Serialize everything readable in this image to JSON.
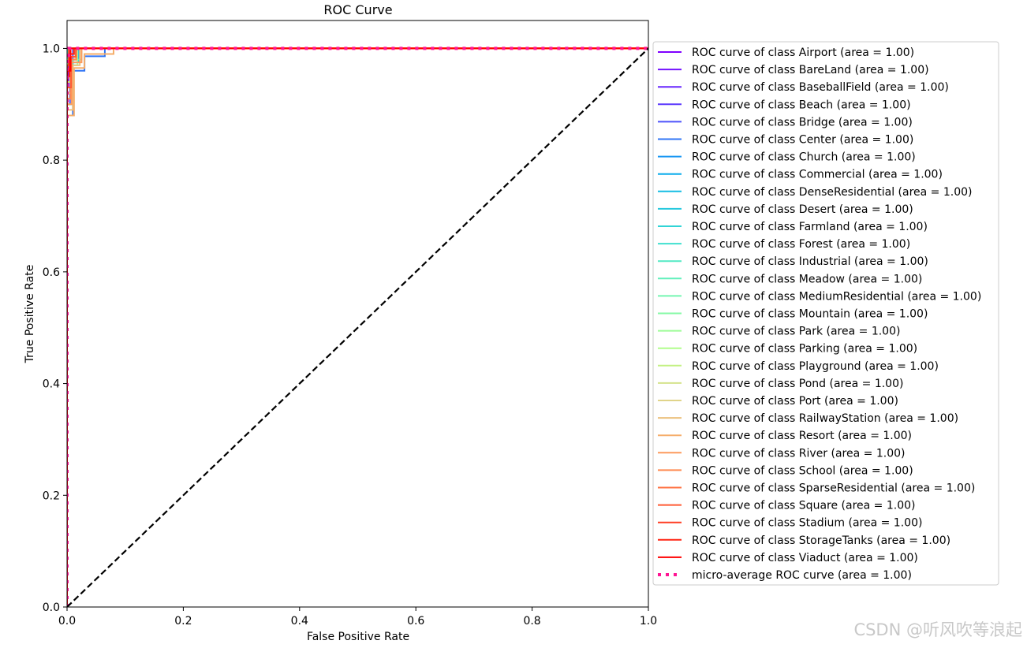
{
  "chart_data": {
    "type": "line",
    "title": "ROC Curve",
    "xlabel": "False Positive Rate",
    "ylabel": "True Positive Rate",
    "xlim": [
      0.0,
      1.0
    ],
    "ylim": [
      0.0,
      1.05
    ],
    "xticks": [
      "0.0",
      "0.2",
      "0.4",
      "0.6",
      "0.8",
      "1.0"
    ],
    "yticks": [
      "0.0",
      "0.2",
      "0.4",
      "0.6",
      "0.8",
      "1.0"
    ],
    "legend_position": "right, outside plot",
    "grid": false,
    "series": [
      {
        "name": "ROC curve of class Airport (area = 1.00)",
        "color": "#8000ff",
        "x": [
          0,
          0,
          0.002,
          0.002,
          1
        ],
        "y": [
          0,
          0.93,
          0.93,
          1.0,
          1.0
        ]
      },
      {
        "name": "ROC curve of class BareLand (area = 1.00)",
        "color": "#7413ff",
        "x": [
          0,
          0,
          0.003,
          0.003,
          1
        ],
        "y": [
          0,
          0.95,
          0.95,
          1.0,
          1.0
        ]
      },
      {
        "name": "ROC curve of class BaseballField (area = 1.00)",
        "color": "#6826fe",
        "x": [
          0,
          0,
          0.004,
          0.004,
          1
        ],
        "y": [
          0,
          0.96,
          0.96,
          1.0,
          1.0
        ]
      },
      {
        "name": "ROC curve of class Beach (area = 1.00)",
        "color": "#5c39fd",
        "x": [
          0,
          0,
          0.002,
          0.002,
          1
        ],
        "y": [
          0,
          0.97,
          0.97,
          1.0,
          1.0
        ]
      },
      {
        "name": "ROC curve of class Bridge (area = 1.00)",
        "color": "#4e53fb",
        "x": [
          0,
          0,
          0.005,
          0.005,
          0.01,
          0.01,
          1
        ],
        "y": [
          0,
          0.9,
          0.9,
          0.97,
          0.97,
          1.0,
          1.0
        ]
      },
      {
        "name": "ROC curve of class Center (area = 1.00)",
        "color": "#3075f6",
        "x": [
          0,
          0,
          0.01,
          0.01,
          0.03,
          0.03,
          0.065,
          0.065,
          1
        ],
        "y": [
          0,
          0.88,
          0.88,
          0.96,
          0.96,
          0.986,
          0.986,
          1.0,
          1.0
        ]
      },
      {
        "name": "ROC curve of class Church (area = 1.00)",
        "color": "#1996f3",
        "x": [
          0,
          0,
          0.006,
          0.006,
          0.015,
          0.015,
          1
        ],
        "y": [
          0,
          0.92,
          0.92,
          0.98,
          0.98,
          1.0,
          1.0
        ]
      },
      {
        "name": "ROC curve of class Commercial (area = 1.00)",
        "color": "#0bacec",
        "x": [
          0,
          0,
          0.008,
          0.008,
          0.02,
          0.02,
          1
        ],
        "y": [
          0,
          0.9,
          0.9,
          0.975,
          0.975,
          1.0,
          1.0
        ]
      },
      {
        "name": "ROC curve of class DenseResidential (area = 1.00)",
        "color": "#16bde4",
        "x": [
          0,
          0,
          0.005,
          0.005,
          0.012,
          0.012,
          1
        ],
        "y": [
          0,
          0.94,
          0.94,
          0.99,
          0.99,
          1.0,
          1.0
        ]
      },
      {
        "name": "ROC curve of class Desert (area = 1.00)",
        "color": "#25c8de",
        "x": [
          0,
          0,
          0.003,
          0.003,
          1
        ],
        "y": [
          0,
          0.98,
          0.98,
          1.0,
          1.0
        ]
      },
      {
        "name": "ROC curve of class Farmland (area = 1.00)",
        "color": "#31d4d6",
        "x": [
          0,
          0,
          0.004,
          0.004,
          1
        ],
        "y": [
          0,
          0.97,
          0.97,
          1.0,
          1.0
        ]
      },
      {
        "name": "ROC curve of class Forest (area = 1.00)",
        "color": "#40e0cf",
        "x": [
          0,
          0,
          0.002,
          0.002,
          1
        ],
        "y": [
          0,
          0.99,
          0.99,
          1.0,
          1.0
        ]
      },
      {
        "name": "ROC curve of class Industrial (area = 1.00)",
        "color": "#52e9c4",
        "x": [
          0,
          0,
          0.01,
          0.01,
          0.025,
          0.025,
          1
        ],
        "y": [
          0,
          0.9,
          0.9,
          0.98,
          0.98,
          1.0,
          1.0
        ]
      },
      {
        "name": "ROC curve of class Meadow (area = 1.00)",
        "color": "#62f0bb",
        "x": [
          0,
          0,
          0.003,
          0.003,
          1
        ],
        "y": [
          0,
          0.97,
          0.97,
          1.0,
          1.0
        ]
      },
      {
        "name": "ROC curve of class MediumResidential (area = 1.00)",
        "color": "#74f5b0",
        "x": [
          0,
          0,
          0.006,
          0.006,
          0.015,
          0.015,
          1
        ],
        "y": [
          0,
          0.93,
          0.93,
          0.985,
          0.985,
          1.0,
          1.0
        ]
      },
      {
        "name": "ROC curve of class Mountain (area = 1.00)",
        "color": "#86faa6",
        "x": [
          0,
          0,
          0.004,
          0.004,
          1
        ],
        "y": [
          0,
          0.96,
          0.96,
          1.0,
          1.0
        ]
      },
      {
        "name": "ROC curve of class Park (area = 1.00)",
        "color": "#9dfc98",
        "x": [
          0,
          0,
          0.008,
          0.008,
          0.018,
          0.018,
          1
        ],
        "y": [
          0,
          0.91,
          0.91,
          0.97,
          0.97,
          1.0,
          1.0
        ]
      },
      {
        "name": "ROC curve of class Parking (area = 1.00)",
        "color": "#b0fe8c",
        "x": [
          0,
          0,
          0.003,
          0.003,
          1
        ],
        "y": [
          0,
          0.98,
          0.98,
          1.0,
          1.0
        ]
      },
      {
        "name": "ROC curve of class Playground (area = 1.00)",
        "color": "#c3f083",
        "x": [
          0,
          0,
          0.005,
          0.005,
          0.012,
          0.012,
          1
        ],
        "y": [
          0,
          0.94,
          0.94,
          0.99,
          0.99,
          1.0,
          1.0
        ]
      },
      {
        "name": "ROC curve of class Pond (area = 1.00)",
        "color": "#d4e38b",
        "x": [
          0,
          0,
          0.004,
          0.004,
          1
        ],
        "y": [
          0,
          0.96,
          0.96,
          1.0,
          1.0
        ]
      },
      {
        "name": "ROC curve of class Port (area = 1.00)",
        "color": "#e0d48a",
        "x": [
          0,
          0,
          0.006,
          0.006,
          0.014,
          0.014,
          1
        ],
        "y": [
          0,
          0.92,
          0.92,
          0.98,
          0.98,
          1.0,
          1.0
        ]
      },
      {
        "name": "ROC curve of class RailwayStation (area = 1.00)",
        "color": "#ebc07d",
        "x": [
          0,
          0,
          0.01,
          0.01,
          0.022,
          0.022,
          1
        ],
        "y": [
          0,
          0.89,
          0.89,
          0.97,
          0.97,
          1.0,
          1.0
        ]
      },
      {
        "name": "ROC curve of class Resort (area = 1.00)",
        "color": "#f5ad6a",
        "x": [
          0,
          0,
          0.012,
          0.012,
          0.03,
          0.03,
          0.08,
          0.08,
          1
        ],
        "y": [
          0,
          0.88,
          0.88,
          0.965,
          0.965,
          0.99,
          0.99,
          1.0,
          1.0
        ]
      },
      {
        "name": "ROC curve of class River (area = 1.00)",
        "color": "#fd9b5d",
        "x": [
          0,
          0,
          0.008,
          0.008,
          0.025,
          0.025,
          1
        ],
        "y": [
          0,
          0.9,
          0.9,
          0.975,
          0.975,
          1.0,
          1.0
        ]
      },
      {
        "name": "ROC curve of class School (area = 1.00)",
        "color": "#ff8a52",
        "x": [
          0,
          0,
          0.006,
          0.006,
          0.016,
          0.016,
          1
        ],
        "y": [
          0,
          0.91,
          0.91,
          0.98,
          0.98,
          1.0,
          1.0
        ]
      },
      {
        "name": "ROC curve of class SparseResidential (area = 1.00)",
        "color": "#ff7142",
        "x": [
          0,
          0,
          0.004,
          0.004,
          1
        ],
        "y": [
          0,
          0.96,
          0.96,
          1.0,
          1.0
        ]
      },
      {
        "name": "ROC curve of class Square (area = 1.00)",
        "color": "#ff5a33",
        "x": [
          0,
          0,
          0.007,
          0.007,
          0.015,
          0.015,
          1
        ],
        "y": [
          0,
          0.93,
          0.93,
          0.985,
          0.985,
          1.0,
          1.0
        ]
      },
      {
        "name": "ROC curve of class Stadium (area = 1.00)",
        "color": "#ff3e22",
        "x": [
          0,
          0,
          0.003,
          0.003,
          1
        ],
        "y": [
          0,
          0.97,
          0.97,
          1.0,
          1.0
        ]
      },
      {
        "name": "ROC curve of class StorageTanks (area = 1.00)",
        "color": "#ff2412",
        "x": [
          0,
          0,
          0.004,
          0.004,
          0.012,
          0.012,
          1
        ],
        "y": [
          0,
          0.95,
          0.95,
          0.99,
          0.99,
          1.0,
          1.0
        ]
      },
      {
        "name": "ROC curve of class Viaduct (area = 1.00)",
        "color": "#ff0000",
        "x": [
          0,
          0,
          0.006,
          0.006,
          1
        ],
        "y": [
          0,
          0.96,
          0.96,
          1.0,
          1.0
        ]
      },
      {
        "name": "micro-average ROC curve (area = 1.00)",
        "color": "#ff1493",
        "dashed": "dotted",
        "x": [
          0,
          0,
          0.003,
          0.003,
          1
        ],
        "y": [
          0,
          0.98,
          0.98,
          1.0,
          1.0
        ]
      }
    ],
    "diagonal": {
      "x": [
        0,
        1
      ],
      "y": [
        0,
        1
      ],
      "color": "#000000",
      "style": "dashed"
    }
  },
  "watermark": "CSDN @听风吹等浪起"
}
